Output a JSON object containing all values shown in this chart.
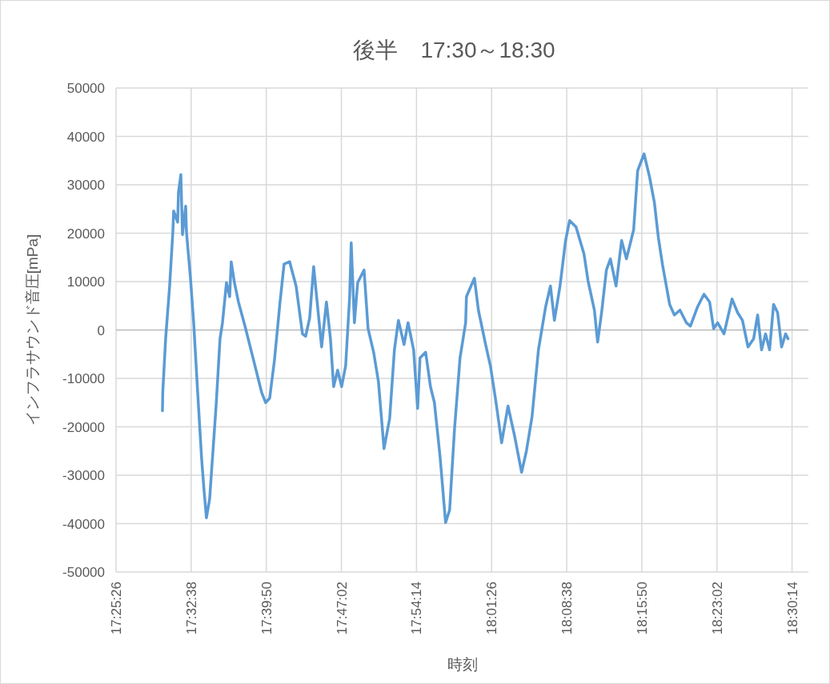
{
  "chart_data": {
    "type": "line",
    "title": "後半　17:30～18:30",
    "xlabel": "時刻",
    "ylabel": "インフラサウンド音圧[mPa]",
    "xlim": [
      17.423889,
      18.53
    ],
    "ylim": [
      -50000,
      50000
    ],
    "xticks": [
      {
        "value": 17.423889,
        "label": "17:25:26"
      },
      {
        "value": 17.543889,
        "label": "17:32:38"
      },
      {
        "value": 17.663889,
        "label": "17:39:50"
      },
      {
        "value": 17.783889,
        "label": "17:47:02"
      },
      {
        "value": 17.903889,
        "label": "17:54:14"
      },
      {
        "value": 18.023889,
        "label": "18:01:26"
      },
      {
        "value": 18.143889,
        "label": "18:08:38"
      },
      {
        "value": 18.263889,
        "label": "18:15:50"
      },
      {
        "value": 18.383889,
        "label": "18:23:02"
      },
      {
        "value": 18.503889,
        "label": "18:30:14"
      }
    ],
    "yticks": [
      -50000,
      -40000,
      -30000,
      -20000,
      -10000,
      0,
      10000,
      20000,
      30000,
      40000,
      50000
    ],
    "grid": true,
    "marker": "none",
    "line_style": "solid",
    "series": [
      {
        "color": "#5b9bd5",
        "x": [
          17.498,
          17.4985,
          17.5031,
          17.5095,
          17.5146,
          17.5159,
          17.5223,
          17.5236,
          17.5274,
          17.53,
          17.5351,
          17.5364,
          17.5428,
          17.5479,
          17.5543,
          17.5606,
          17.5645,
          17.5683,
          17.5734,
          17.5837,
          17.59,
          17.5939,
          17.6003,
          17.6054,
          17.6079,
          17.613,
          17.6194,
          17.6309,
          17.6437,
          17.6565,
          17.6629,
          17.6693,
          17.6769,
          17.6859,
          17.6923,
          17.7012,
          17.7115,
          17.7217,
          17.7268,
          17.7332,
          17.7396,
          17.7434,
          17.7523,
          17.76,
          17.7664,
          17.7715,
          17.7779,
          17.7843,
          17.7907,
          17.7971,
          17.7996,
          17.8047,
          17.8099,
          17.8201,
          17.8265,
          17.8354,
          17.8431,
          17.852,
          17.861,
          17.8686,
          17.875,
          17.884,
          17.8904,
          17.8993,
          17.9057,
          17.9095,
          17.9185,
          17.9262,
          17.9325,
          17.9415,
          17.9504,
          17.9568,
          17.9645,
          17.9734,
          17.9824,
          17.9837,
          17.9964,
          18.0028,
          18.0143,
          18.022,
          18.031,
          18.0399,
          18.0501,
          18.0603,
          18.0718,
          18.0795,
          18.0885,
          18.0987,
          18.1102,
          18.1179,
          18.1242,
          18.1332,
          18.1421,
          18.1485,
          18.1588,
          18.1715,
          18.1779,
          18.1881,
          18.1933,
          18.1996,
          18.2073,
          18.2137,
          18.2227,
          18.2316,
          18.2393,
          18.2508,
          18.2572,
          18.2674,
          18.2763,
          18.284,
          18.2904,
          18.2968,
          18.3083,
          18.3159,
          18.3249,
          18.3351,
          18.3415,
          18.353,
          18.3632,
          18.3722,
          18.3786,
          18.385,
          18.3952,
          18.408,
          18.4169,
          18.4246,
          18.4335,
          18.4425,
          18.4489,
          18.4552,
          18.4616,
          18.468,
          18.4744,
          18.4808,
          18.4872,
          18.4936,
          18.4974
        ],
        "values": [
          -16700,
          -12900,
          -1800,
          9100,
          20200,
          24600,
          22300,
          28400,
          32100,
          19700,
          25600,
          20200,
          10700,
          1500,
          -12900,
          -26600,
          -33200,
          -38800,
          -34900,
          -15700,
          -1800,
          1500,
          9800,
          6900,
          14100,
          9800,
          5800,
          300,
          -6300,
          -12900,
          -15000,
          -14100,
          -6300,
          5800,
          13600,
          14100,
          9100,
          -800,
          -1300,
          2500,
          13100,
          8100,
          -3500,
          5800,
          -1800,
          -11700,
          -8300,
          -11700,
          -7400,
          6900,
          18000,
          1500,
          9800,
          12400,
          300,
          -4600,
          -10700,
          -24500,
          -18300,
          -4100,
          2000,
          -3000,
          1500,
          -4100,
          -16200,
          -5800,
          -4600,
          -11700,
          -15000,
          -26100,
          -39800,
          -37200,
          -20700,
          -5800,
          1500,
          6900,
          10700,
          4100,
          -3000,
          -7400,
          -15000,
          -23300,
          -15700,
          -21700,
          -29400,
          -25000,
          -17900,
          -4100,
          4800,
          9100,
          2000,
          9100,
          18500,
          22600,
          21300,
          15700,
          10200,
          4100,
          -2500,
          3600,
          12400,
          14700,
          9100,
          18500,
          14700,
          20700,
          32900,
          36400,
          31600,
          26300,
          19000,
          13600,
          5300,
          3100,
          4100,
          1500,
          800,
          4800,
          7400,
          5800,
          300,
          1500,
          -800,
          6400,
          3600,
          2000,
          -3500,
          -1800,
          3100,
          -4100,
          -800,
          -4100,
          5300,
          3600,
          -3500,
          -800,
          -1800
        ]
      }
    ]
  }
}
